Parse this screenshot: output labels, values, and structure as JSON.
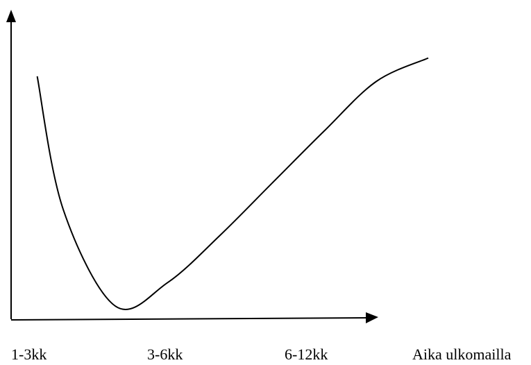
{
  "chart_data": {
    "type": "line",
    "title": "",
    "ylabel": "",
    "xlabel": "Aika ulkomailla",
    "categories": [
      "1-3kk",
      "3-6kk",
      "6-12kk"
    ],
    "x": [
      0.25,
      0.5,
      1.0,
      1.5,
      2.0,
      2.5,
      3.0,
      3.5,
      4.0
    ],
    "series": [
      {
        "values": [
          0.93,
          0.42,
          0.05,
          0.14,
          0.32,
          0.52,
          0.72,
          0.91,
          1.0
        ]
      }
    ],
    "ylim": [
      0,
      1.1
    ],
    "grid": false,
    "legend": "none",
    "line_color": "#000000"
  }
}
